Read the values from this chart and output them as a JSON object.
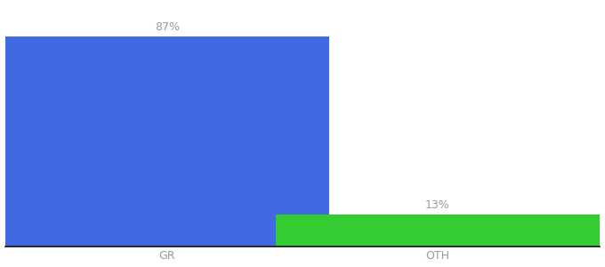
{
  "categories": [
    "GR",
    "OTH"
  ],
  "values": [
    87,
    13
  ],
  "bar_colors": [
    "#4169e1",
    "#33cc33"
  ],
  "labels": [
    "87%",
    "13%"
  ],
  "background_color": "#ffffff",
  "bar_width": 0.6,
  "x_positions": [
    0.3,
    0.8
  ],
  "xlim": [
    0.0,
    1.1
  ],
  "ylim": [
    0,
    100
  ],
  "label_fontsize": 9,
  "tick_fontsize": 9,
  "label_color": "#999999"
}
